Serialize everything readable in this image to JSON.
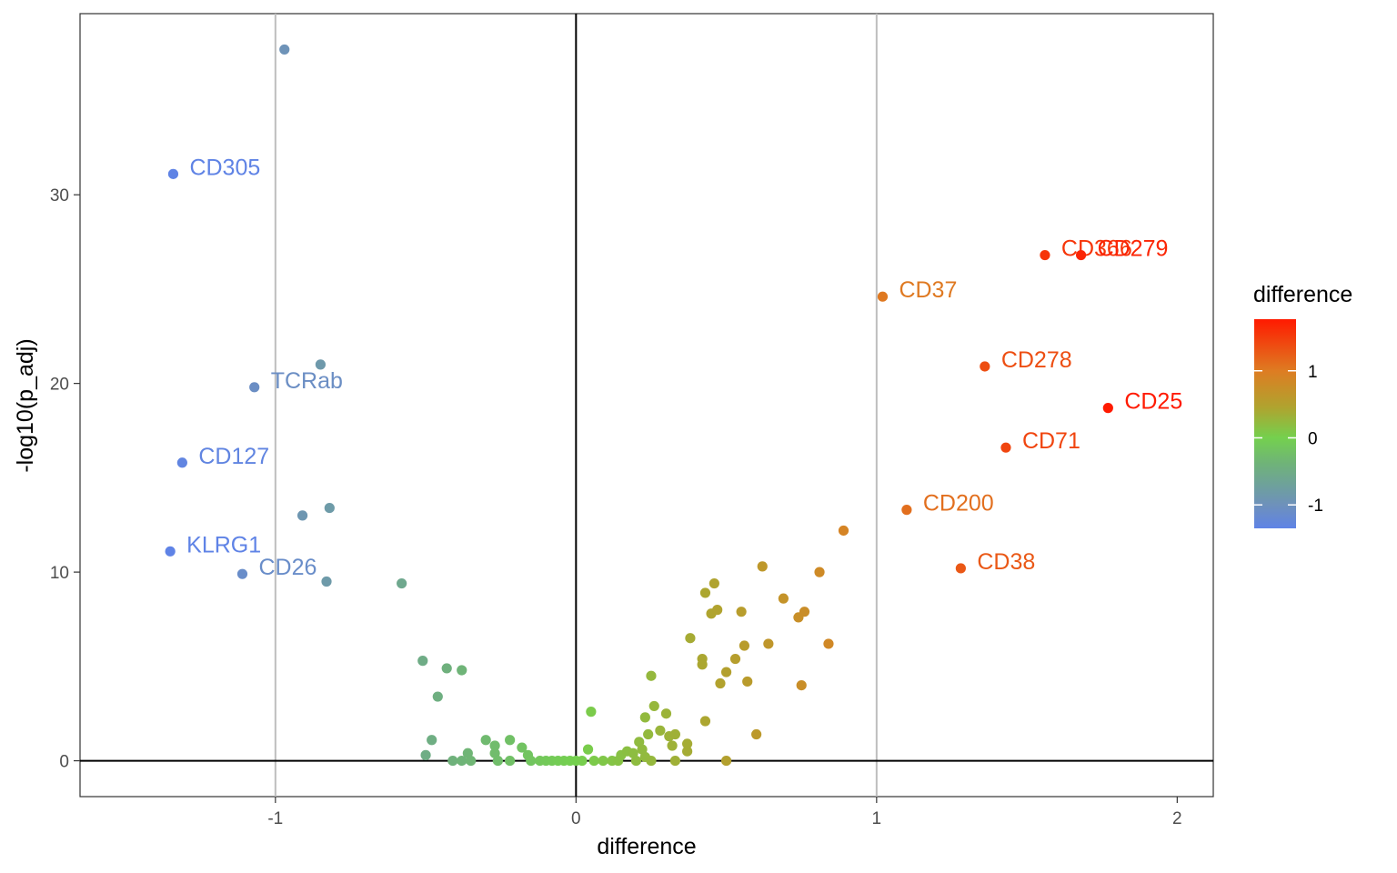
{
  "chart_data": {
    "type": "scatter",
    "title": "",
    "xlabel": "difference",
    "ylabel": "-log10(p_adj)",
    "xlim": [
      -1.65,
      2.12
    ],
    "ylim": [
      -1.9,
      39.6
    ],
    "x_ticks": [
      -1,
      0,
      1,
      2
    ],
    "y_ticks": [
      0,
      10,
      20,
      30
    ],
    "vlines": [
      -1,
      1
    ],
    "zero_lines": {
      "x": 0,
      "y": 0
    },
    "grid": false,
    "color_legend": {
      "title": "difference",
      "position": "right",
      "ticks": [
        1,
        0,
        -1
      ],
      "range": [
        -1.35,
        1.77
      ],
      "gradient": [
        {
          "value": -1.35,
          "color": "#5f83e6"
        },
        {
          "value": -1.0,
          "color": "#6e91bb"
        },
        {
          "value": -0.4,
          "color": "#6fb27a"
        },
        {
          "value": 0.0,
          "color": "#74d04e"
        },
        {
          "value": 0.45,
          "color": "#afa42f"
        },
        {
          "value": 1.0,
          "color": "#de7c22"
        },
        {
          "value": 1.77,
          "color": "#ff1a00"
        }
      ]
    },
    "labeled_points": [
      {
        "label": "CD305",
        "x": -1.34,
        "y": 31.1
      },
      {
        "label": "TCRab",
        "x": -1.07,
        "y": 19.8
      },
      {
        "label": "CD127",
        "x": -1.31,
        "y": 15.8
      },
      {
        "label": "KLRG1",
        "x": -1.35,
        "y": 11.1
      },
      {
        "label": "CD26",
        "x": -1.11,
        "y": 9.9
      },
      {
        "label": "CD366",
        "x": 1.56,
        "y": 26.8
      },
      {
        "label": "CD279",
        "x": 1.68,
        "y": 26.8
      },
      {
        "label": "CD37",
        "x": 1.02,
        "y": 24.6
      },
      {
        "label": "CD278",
        "x": 1.36,
        "y": 20.9
      },
      {
        "label": "CD25",
        "x": 1.77,
        "y": 18.7
      },
      {
        "label": "CD71",
        "x": 1.43,
        "y": 16.6
      },
      {
        "label": "CD200",
        "x": 1.1,
        "y": 13.3
      },
      {
        "label": "CD38",
        "x": 1.28,
        "y": 10.2
      }
    ],
    "points": [
      {
        "x": -0.97,
        "y": 37.7
      },
      {
        "x": -0.85,
        "y": 21.0
      },
      {
        "x": -0.82,
        "y": 13.4
      },
      {
        "x": -0.91,
        "y": 13.0
      },
      {
        "x": -0.83,
        "y": 9.5
      },
      {
        "x": -0.58,
        "y": 9.4
      },
      {
        "x": -0.51,
        "y": 5.3
      },
      {
        "x": -0.43,
        "y": 4.9
      },
      {
        "x": -0.38,
        "y": 4.8
      },
      {
        "x": -0.46,
        "y": 3.4
      },
      {
        "x": -0.48,
        "y": 1.1
      },
      {
        "x": -0.5,
        "y": 0.3
      },
      {
        "x": -0.41,
        "y": 0.0
      },
      {
        "x": -0.38,
        "y": 0.0
      },
      {
        "x": -0.36,
        "y": 0.4
      },
      {
        "x": -0.35,
        "y": 0.0
      },
      {
        "x": -0.3,
        "y": 1.1
      },
      {
        "x": -0.27,
        "y": 0.8
      },
      {
        "x": -0.27,
        "y": 0.4
      },
      {
        "x": -0.26,
        "y": 0.0
      },
      {
        "x": -0.22,
        "y": 1.1
      },
      {
        "x": -0.22,
        "y": 0.0
      },
      {
        "x": -0.18,
        "y": 0.7
      },
      {
        "x": -0.16,
        "y": 0.3
      },
      {
        "x": -0.15,
        "y": 0.0
      },
      {
        "x": -0.12,
        "y": 0.0
      },
      {
        "x": -0.1,
        "y": 0.0
      },
      {
        "x": -0.08,
        "y": 0.0
      },
      {
        "x": -0.06,
        "y": 0.0
      },
      {
        "x": -0.04,
        "y": 0.0
      },
      {
        "x": -0.02,
        "y": 0.0
      },
      {
        "x": 0.0,
        "y": 0.0
      },
      {
        "x": 0.02,
        "y": 0.0
      },
      {
        "x": 0.05,
        "y": 2.6
      },
      {
        "x": 0.04,
        "y": 0.6
      },
      {
        "x": 0.06,
        "y": 0.0
      },
      {
        "x": 0.09,
        "y": 0.0
      },
      {
        "x": 0.12,
        "y": 0.0
      },
      {
        "x": 0.14,
        "y": 0.0
      },
      {
        "x": 0.15,
        "y": 0.3
      },
      {
        "x": 0.17,
        "y": 0.5
      },
      {
        "x": 0.19,
        "y": 0.4
      },
      {
        "x": 0.2,
        "y": 0.0
      },
      {
        "x": 0.21,
        "y": 1.0
      },
      {
        "x": 0.22,
        "y": 0.6
      },
      {
        "x": 0.23,
        "y": 2.3
      },
      {
        "x": 0.23,
        "y": 0.2
      },
      {
        "x": 0.24,
        "y": 1.4
      },
      {
        "x": 0.25,
        "y": 0.0
      },
      {
        "x": 0.25,
        "y": 4.5
      },
      {
        "x": 0.26,
        "y": 2.9
      },
      {
        "x": 0.28,
        "y": 1.6
      },
      {
        "x": 0.3,
        "y": 2.5
      },
      {
        "x": 0.31,
        "y": 1.3
      },
      {
        "x": 0.32,
        "y": 0.8
      },
      {
        "x": 0.33,
        "y": 1.4
      },
      {
        "x": 0.33,
        "y": 0.0
      },
      {
        "x": 0.37,
        "y": 0.5
      },
      {
        "x": 0.37,
        "y": 0.9
      },
      {
        "x": 0.38,
        "y": 6.5
      },
      {
        "x": 0.42,
        "y": 5.4
      },
      {
        "x": 0.42,
        "y": 5.1
      },
      {
        "x": 0.43,
        "y": 8.9
      },
      {
        "x": 0.43,
        "y": 2.1
      },
      {
        "x": 0.45,
        "y": 7.8
      },
      {
        "x": 0.46,
        "y": 9.4
      },
      {
        "x": 0.47,
        "y": 8.0
      },
      {
        "x": 0.48,
        "y": 4.1
      },
      {
        "x": 0.5,
        "y": 4.7
      },
      {
        "x": 0.5,
        "y": 0.0
      },
      {
        "x": 0.53,
        "y": 5.4
      },
      {
        "x": 0.55,
        "y": 7.9
      },
      {
        "x": 0.56,
        "y": 6.1
      },
      {
        "x": 0.57,
        "y": 4.2
      },
      {
        "x": 0.6,
        "y": 1.4
      },
      {
        "x": 0.62,
        "y": 10.3
      },
      {
        "x": 0.64,
        "y": 6.2
      },
      {
        "x": 0.69,
        "y": 8.6
      },
      {
        "x": 0.74,
        "y": 7.6
      },
      {
        "x": 0.75,
        "y": 4.0
      },
      {
        "x": 0.76,
        "y": 7.9
      },
      {
        "x": 0.81,
        "y": 10.0
      },
      {
        "x": 0.84,
        "y": 6.2
      },
      {
        "x": 0.89,
        "y": 12.2
      }
    ]
  }
}
